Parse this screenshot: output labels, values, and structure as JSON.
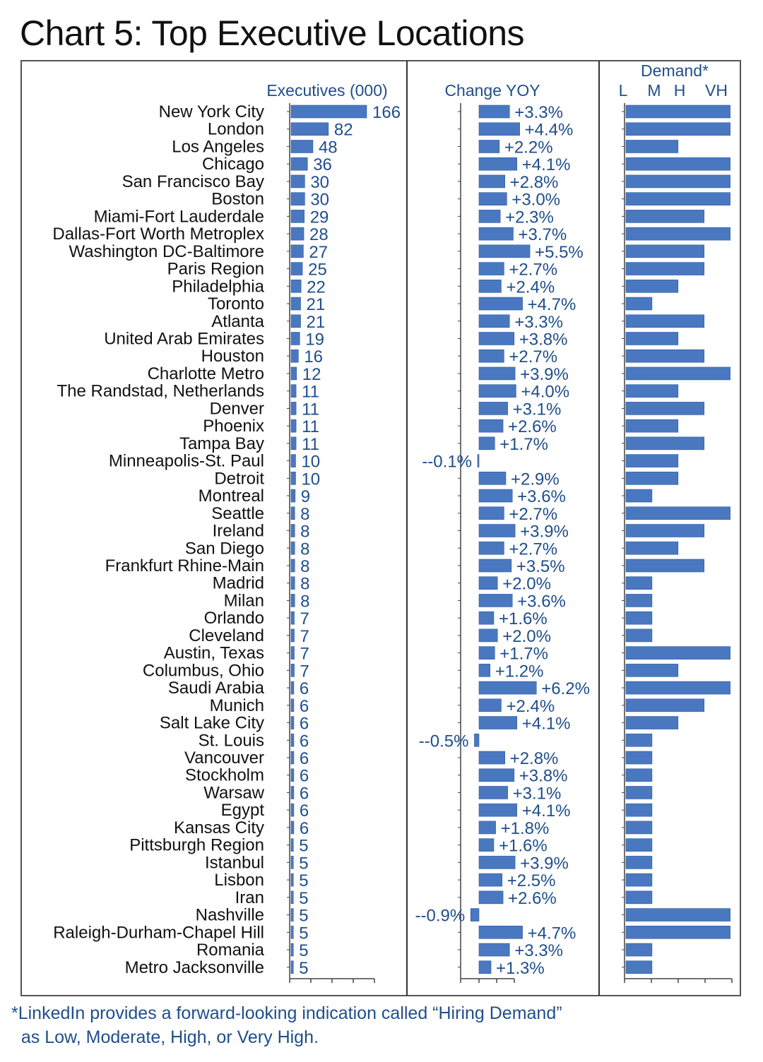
{
  "title": "Chart 5: Top Executive Locations",
  "footnote": "*LinkedIn provides a forward-looking indication called “Hiring Demand”\n  as Low, Moderate, High, or Very High.",
  "colors": {
    "bar": "#4a78c0",
    "bar_edge": "#2f5a9e",
    "label_text": "#1f4e8c",
    "frame": "#555555"
  },
  "chart_data": {
    "type": "bar",
    "orientation": "horizontal",
    "categories": [
      "New York City",
      "London",
      "Los Angeles",
      "Chicago",
      "San Francisco Bay",
      "Boston",
      "Miami-Fort Lauderdale",
      "Dallas-Fort Worth Metroplex",
      "Washington DC-Baltimore",
      "Paris  Region",
      "Philadelphia",
      "Toronto",
      "Atlanta",
      "United Arab Emirates",
      "Houston",
      "Charlotte Metro",
      "The Randstad, Netherlands",
      "Denver",
      "Phoenix",
      "Tampa Bay",
      "Minneapolis-St. Paul",
      "Detroit",
      "Montreal",
      "Seattle",
      "Ireland",
      "San Diego",
      "Frankfurt Rhine-Main",
      "Madrid",
      "Milan",
      "Orlando",
      "Cleveland",
      "Austin, Texas",
      "Columbus, Ohio",
      "Saudi Arabia",
      "Munich",
      "Salt Lake City",
      "St. Louis",
      "Vancouver",
      "Stockholm",
      "Warsaw",
      "Egypt",
      "Kansas City",
      "Pittsburgh Region",
      "Istanbul",
      "Lisbon",
      "Iran",
      "Nashville",
      "Raleigh-Durham-Chapel Hill",
      "Romania",
      "Metro Jacksonville"
    ],
    "series": [
      {
        "name": "Executives (000)",
        "values": [
          166,
          82,
          48,
          36,
          30,
          30,
          29,
          28,
          27,
          25,
          22,
          21,
          21,
          19,
          16,
          12,
          11,
          11,
          11,
          11,
          10,
          10,
          9,
          8,
          8,
          8,
          8,
          8,
          8,
          7,
          7,
          7,
          7,
          6,
          6,
          6,
          6,
          6,
          6,
          6,
          6,
          6,
          5,
          5,
          5,
          5,
          5,
          5,
          5,
          5
        ]
      },
      {
        "name": "Change YOY",
        "values": [
          3.3,
          4.4,
          2.2,
          4.1,
          2.8,
          3.0,
          2.3,
          3.7,
          5.5,
          2.7,
          2.4,
          4.7,
          3.3,
          3.8,
          2.7,
          3.9,
          4.0,
          3.1,
          2.6,
          1.7,
          -0.1,
          2.9,
          3.6,
          2.7,
          3.9,
          2.7,
          3.5,
          2.0,
          3.6,
          1.6,
          2.0,
          1.7,
          1.2,
          6.2,
          2.4,
          4.1,
          -0.5,
          2.8,
          3.8,
          3.1,
          4.1,
          1.8,
          1.6,
          3.9,
          2.5,
          2.6,
          -0.9,
          4.7,
          3.3,
          1.3
        ],
        "labels": [
          "+3.3%",
          "+4.4%",
          "+2.2%",
          "+4.1%",
          "+2.8%",
          "+3.0%",
          "+2.3%",
          "+3.7%",
          "+5.5%",
          "+2.7%",
          "+2.4%",
          "+4.7%",
          "+3.3%",
          "+3.8%",
          "+2.7%",
          "+3.9%",
          "+4.0%",
          "+3.1%",
          "+2.6%",
          "+1.7%",
          "--0.1%",
          "+2.9%",
          "+3.6%",
          "+2.7%",
          "+3.9%",
          "+2.7%",
          "+3.5%",
          "+2.0%",
          "+3.6%",
          "+1.6%",
          "+2.0%",
          "+1.7%",
          "+1.2%",
          "+6.2%",
          "+2.4%",
          "+4.1%",
          "--0.5%",
          "+2.8%",
          "+3.8%",
          "+3.1%",
          "+4.1%",
          "+1.8%",
          "+1.6%",
          "+3.9%",
          "+2.5%",
          "+2.6%",
          "--0.9%",
          "+4.7%",
          "+3.3%",
          "+1.3%"
        ]
      },
      {
        "name": "Demand*",
        "scale": [
          "L",
          "M",
          "H",
          "VH"
        ],
        "values": [
          "VH",
          "VH",
          "M",
          "VH",
          "VH",
          "VH",
          "H",
          "VH",
          "H",
          "H",
          "M",
          "L",
          "H",
          "M",
          "H",
          "VH",
          "M",
          "H",
          "M",
          "H",
          "M",
          "M",
          "L",
          "VH",
          "H",
          "M",
          "H",
          "L",
          "L",
          "L",
          "L",
          "VH",
          "M",
          "VH",
          "H",
          "M",
          "L",
          "L",
          "L",
          "L",
          "L",
          "L",
          "L",
          "L",
          "L",
          "L",
          "VH",
          "VH",
          "L",
          "L"
        ]
      }
    ],
    "panel_headers": [
      "Executives (000)",
      "Change YOY",
      "Demand*"
    ],
    "demand_axis_labels": [
      "L",
      "M",
      "H",
      "VH"
    ],
    "grid": false,
    "legend": "none"
  }
}
